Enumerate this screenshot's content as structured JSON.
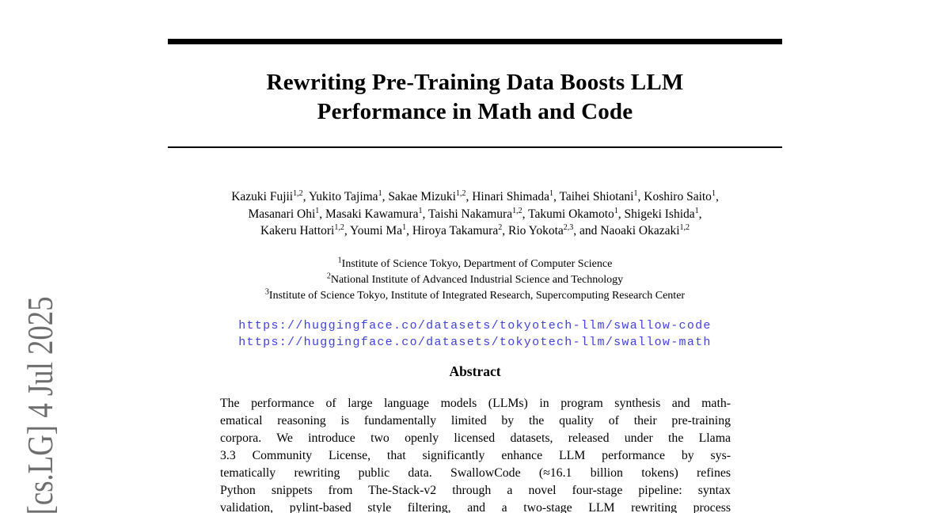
{
  "colors": {
    "link": "#4141DC",
    "stamp": "#6E6E6E",
    "rule": "#000000"
  },
  "arxiv_stamp": {
    "text": "[cs.LG]  4 Jul 2025"
  },
  "title": {
    "line1": "Rewriting Pre-Training Data Boosts LLM",
    "line2": "Performance in Math and Code"
  },
  "authors": {
    "lines": [
      [
        {
          "name": "Kazuki Fujii",
          "sup": "1,2",
          "tail": ", "
        },
        {
          "name": "Yukito Tajima",
          "sup": "1",
          "tail": ", "
        },
        {
          "name": "Sakae Mizuki",
          "sup": "1,2",
          "tail": ", "
        },
        {
          "name": "Hinari Shimada",
          "sup": "1",
          "tail": ", "
        },
        {
          "name": "Taihei Shiotani",
          "sup": "1",
          "tail": ", "
        },
        {
          "name": "Koshiro Saito",
          "sup": "1",
          "tail": ","
        }
      ],
      [
        {
          "name": "Masanari Ohi",
          "sup": "1",
          "tail": ", "
        },
        {
          "name": "Masaki Kawamura",
          "sup": "1",
          "tail": ", "
        },
        {
          "name": "Taishi Nakamura",
          "sup": "1,2",
          "tail": ", "
        },
        {
          "name": "Takumi Okamoto",
          "sup": "1",
          "tail": ", "
        },
        {
          "name": "Shigeki Ishida",
          "sup": "1",
          "tail": ","
        }
      ],
      [
        {
          "name": "Kakeru Hattori",
          "sup": "1,2",
          "tail": ", "
        },
        {
          "name": "Youmi Ma",
          "sup": "1",
          "tail": ", "
        },
        {
          "name": "Hiroya Takamura",
          "sup": "2",
          "tail": ", "
        },
        {
          "name": "Rio Yokota",
          "sup": "2,3",
          "tail": ", "
        },
        {
          "name": "and Naoaki Okazaki",
          "sup": "1,2",
          "tail": ""
        }
      ]
    ]
  },
  "affiliations": [
    {
      "sup": "1",
      "text": "Institute of Science Tokyo, Department of Computer Science"
    },
    {
      "sup": "2",
      "text": "National Institute of Advanced Industrial Science and Technology"
    },
    {
      "sup": "3",
      "text": "Institute of Science Tokyo, Institute of Integrated Research, Supercomputing Research Center"
    }
  ],
  "links": [
    {
      "url": "https://huggingface.co/datasets/tokyotech-llm/swallow-code"
    },
    {
      "url": "https://huggingface.co/datasets/tokyotech-llm/swallow-math"
    }
  ],
  "abstract": {
    "heading": "Abstract",
    "lines": [
      "The performance of large language models (LLMs) in program synthesis and math-",
      "ematical reasoning is fundamentally limited by the quality of their pre-training",
      "corpora. We introduce two openly licensed datasets, released under the Llama",
      "3.3 Community License, that significantly enhance LLM performance by sys-",
      "tematically rewriting public data. SwallowCode (≈16.1 billion tokens) refines",
      "Python snippets from The-Stack-v2 through a novel four-stage pipeline: syntax",
      "validation, pylint-based style filtering, and a two-stage LLM rewriting process"
    ]
  }
}
